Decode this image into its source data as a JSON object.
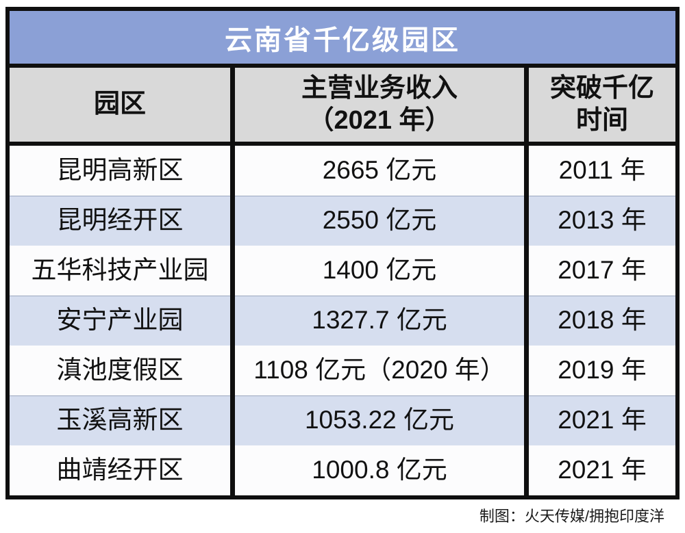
{
  "title": "云南省千亿级园区",
  "header": {
    "col1": "园区",
    "col2_line1": "主营业务收入",
    "col2_line2": "（2021 年）",
    "col3_line1": "突破千亿",
    "col3_line2": "时间"
  },
  "chart_data": {
    "type": "table",
    "title": "云南省千亿级园区",
    "columns": [
      "园区",
      "主营业务收入（2021 年）",
      "突破千亿时间"
    ],
    "rows": [
      [
        "昆明高新区",
        "2665 亿元",
        "2011 年"
      ],
      [
        "昆明经开区",
        "2550 亿元",
        "2013 年"
      ],
      [
        "五华科技产业园",
        "1400 亿元",
        "2017 年"
      ],
      [
        "安宁产业园",
        "1327.7 亿元",
        "2018 年"
      ],
      [
        "滇池度假区",
        "1108 亿元（2020 年）",
        "2019 年"
      ],
      [
        "玉溪高新区",
        "1053.22 亿元",
        "2021 年"
      ],
      [
        "曲靖经开区",
        "1000.8 亿元",
        "2021 年"
      ]
    ],
    "revenue_values_yi_yuan": [
      2665,
      2550,
      1400,
      1327.7,
      1108,
      1053.22,
      1000.8
    ],
    "breakthrough_years": [
      2011,
      2013,
      2017,
      2018,
      2019,
      2021,
      2021
    ],
    "layout": "striped rows, black grid borders, title banner on top"
  },
  "footer": {
    "credit": "制图：火天传媒/拥抱印度洋"
  },
  "colors": {
    "title_bg": "#8BA0D6",
    "title_text": "#FFFFFF",
    "header_bg": "#D9D9D9",
    "stripe_row_bg": "#D6DEEF",
    "plain_row_bg": "#FCFCFD",
    "border": "#0F0F0F",
    "text": "#111111"
  }
}
